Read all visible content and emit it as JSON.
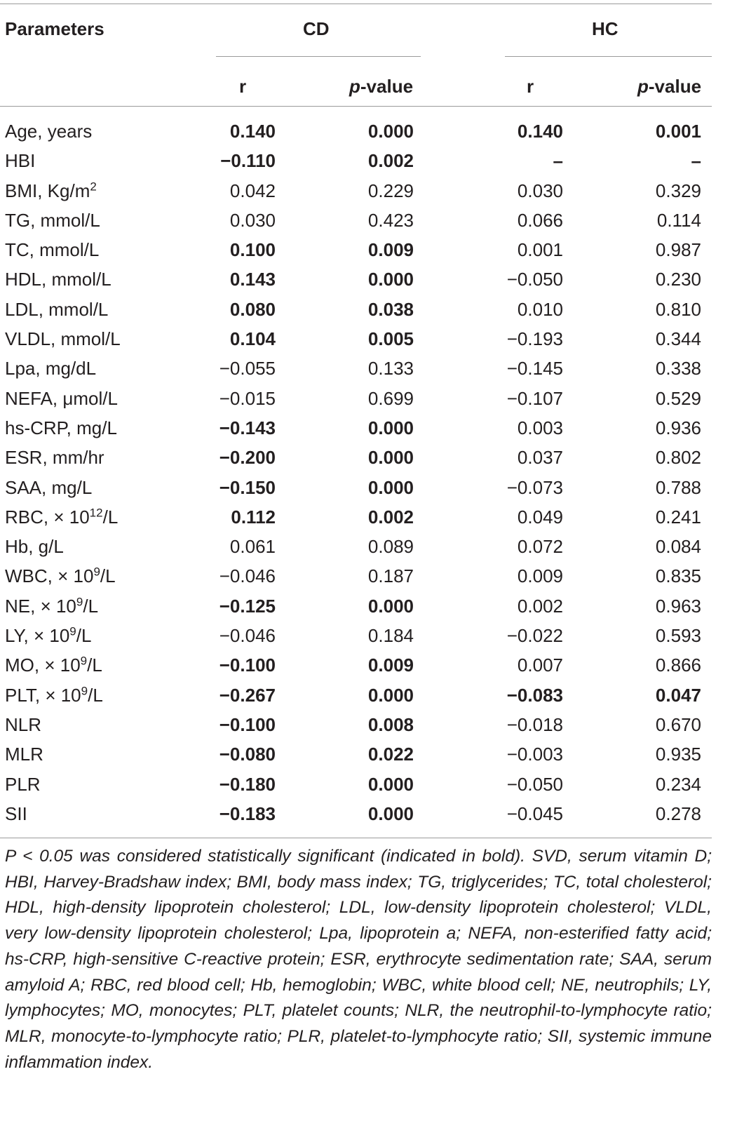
{
  "table": {
    "headers": {
      "parameters": "Parameters",
      "group_cd": "CD",
      "group_hc": "HC",
      "r": "r",
      "p_prefix": "p",
      "p_suffix": "-value"
    },
    "rows": [
      {
        "param": "Age, years",
        "sup": "",
        "param_tail": "",
        "cd_r": "0.140",
        "cd_p": "0.000",
        "hc_r": "0.140",
        "hc_p": "0.001",
        "cd_bold": true,
        "hc_bold": true
      },
      {
        "param": "HBI",
        "sup": "",
        "param_tail": "",
        "cd_r": "−0.110",
        "cd_p": "0.002",
        "hc_r": "–",
        "hc_p": "–",
        "cd_bold": true,
        "hc_bold": true
      },
      {
        "param": "BMI, Kg/m",
        "sup": "2",
        "param_tail": "",
        "cd_r": "0.042",
        "cd_p": "0.229",
        "hc_r": "0.030",
        "hc_p": "0.329",
        "cd_bold": false,
        "hc_bold": false
      },
      {
        "param": "TG, mmol/L",
        "sup": "",
        "param_tail": "",
        "cd_r": "0.030",
        "cd_p": "0.423",
        "hc_r": "0.066",
        "hc_p": "0.114",
        "cd_bold": false,
        "hc_bold": false
      },
      {
        "param": "TC, mmol/L",
        "sup": "",
        "param_tail": "",
        "cd_r": "0.100",
        "cd_p": "0.009",
        "hc_r": "0.001",
        "hc_p": "0.987",
        "cd_bold": true,
        "hc_bold": false
      },
      {
        "param": "HDL, mmol/L",
        "sup": "",
        "param_tail": "",
        "cd_r": "0.143",
        "cd_p": "0.000",
        "hc_r": "−0.050",
        "hc_p": "0.230",
        "cd_bold": true,
        "hc_bold": false
      },
      {
        "param": "LDL, mmol/L",
        "sup": "",
        "param_tail": "",
        "cd_r": "0.080",
        "cd_p": "0.038",
        "hc_r": "0.010",
        "hc_p": "0.810",
        "cd_bold": true,
        "hc_bold": false
      },
      {
        "param": "VLDL, mmol/L",
        "sup": "",
        "param_tail": "",
        "cd_r": "0.104",
        "cd_p": "0.005",
        "hc_r": "−0.193",
        "hc_p": "0.344",
        "cd_bold": true,
        "hc_bold": false
      },
      {
        "param": "Lpa, mg/dL",
        "sup": "",
        "param_tail": "",
        "cd_r": "−0.055",
        "cd_p": "0.133",
        "hc_r": "−0.145",
        "hc_p": "0.338",
        "cd_bold": false,
        "hc_bold": false
      },
      {
        "param": "NEFA, μmol/L",
        "sup": "",
        "param_tail": "",
        "cd_r": "−0.015",
        "cd_p": "0.699",
        "hc_r": "−0.107",
        "hc_p": "0.529",
        "cd_bold": false,
        "hc_bold": false
      },
      {
        "param": "hs-CRP, mg/L",
        "sup": "",
        "param_tail": "",
        "cd_r": "−0.143",
        "cd_p": "0.000",
        "hc_r": "0.003",
        "hc_p": "0.936",
        "cd_bold": true,
        "hc_bold": false
      },
      {
        "param": "ESR, mm/hr",
        "sup": "",
        "param_tail": "",
        "cd_r": "−0.200",
        "cd_p": "0.000",
        "hc_r": "0.037",
        "hc_p": "0.802",
        "cd_bold": true,
        "hc_bold": false
      },
      {
        "param": "SAA, mg/L",
        "sup": "",
        "param_tail": "",
        "cd_r": "−0.150",
        "cd_p": "0.000",
        "hc_r": "−0.073",
        "hc_p": "0.788",
        "cd_bold": true,
        "hc_bold": false
      },
      {
        "param": "RBC, × 10",
        "sup": "12",
        "param_tail": "/L",
        "cd_r": "0.112",
        "cd_p": "0.002",
        "hc_r": "0.049",
        "hc_p": "0.241",
        "cd_bold": true,
        "hc_bold": false
      },
      {
        "param": "Hb, g/L",
        "sup": "",
        "param_tail": "",
        "cd_r": "0.061",
        "cd_p": "0.089",
        "hc_r": "0.072",
        "hc_p": "0.084",
        "cd_bold": false,
        "hc_bold": false
      },
      {
        "param": "WBC, × 10",
        "sup": "9",
        "param_tail": "/L",
        "cd_r": "−0.046",
        "cd_p": "0.187",
        "hc_r": "0.009",
        "hc_p": "0.835",
        "cd_bold": false,
        "hc_bold": false
      },
      {
        "param": "NE, × 10",
        "sup": "9",
        "param_tail": "/L",
        "cd_r": "−0.125",
        "cd_p": "0.000",
        "hc_r": "0.002",
        "hc_p": "0.963",
        "cd_bold": true,
        "hc_bold": false
      },
      {
        "param": "LY, × 10",
        "sup": "9",
        "param_tail": "/L",
        "cd_r": "−0.046",
        "cd_p": "0.184",
        "hc_r": "−0.022",
        "hc_p": "0.593",
        "cd_bold": false,
        "hc_bold": false
      },
      {
        "param": "MO, × 10",
        "sup": "9",
        "param_tail": "/L",
        "cd_r": "−0.100",
        "cd_p": "0.009",
        "hc_r": "0.007",
        "hc_p": "0.866",
        "cd_bold": true,
        "hc_bold": false
      },
      {
        "param": "PLT, × 10",
        "sup": "9",
        "param_tail": "/L",
        "cd_r": "−0.267",
        "cd_p": "0.000",
        "hc_r": "−0.083",
        "hc_p": "0.047",
        "cd_bold": true,
        "hc_bold": true
      },
      {
        "param": "NLR",
        "sup": "",
        "param_tail": "",
        "cd_r": "−0.100",
        "cd_p": "0.008",
        "hc_r": "−0.018",
        "hc_p": "0.670",
        "cd_bold": true,
        "hc_bold": false
      },
      {
        "param": "MLR",
        "sup": "",
        "param_tail": "",
        "cd_r": "−0.080",
        "cd_p": "0.022",
        "hc_r": "−0.003",
        "hc_p": "0.935",
        "cd_bold": true,
        "hc_bold": false
      },
      {
        "param": "PLR",
        "sup": "",
        "param_tail": "",
        "cd_r": "−0.180",
        "cd_p": "0.000",
        "hc_r": "−0.050",
        "hc_p": "0.234",
        "cd_bold": true,
        "hc_bold": false
      },
      {
        "param": "SII",
        "sup": "",
        "param_tail": "",
        "cd_r": "−0.183",
        "cd_p": "0.000",
        "hc_r": "−0.045",
        "hc_p": "0.278",
        "cd_bold": true,
        "hc_bold": false
      }
    ],
    "footnote": "P < 0.05 was considered statistically significant (indicated in bold). SVD, serum vitamin D; HBI, Harvey-Bradshaw index; BMI, body mass index; TG, triglycerides; TC, total cholesterol; HDL, high-density lipoprotein cholesterol; LDL, low-density lipoprotein cholesterol; VLDL, very low-density lipoprotein cholesterol; Lpa, lipoprotein a; NEFA, non-esterified fatty acid; hs-CRP, high-sensitive C-reactive protein; ESR, erythrocyte sedimentation rate; SAA, serum amyloid A; RBC, red blood cell; Hb, hemoglobin; WBC, white blood cell; NE, neutrophils; LY, lymphocytes; MO, monocytes; PLT, platelet counts; NLR, the neutrophil-to-lymphocyte ratio; MLR, monocyte-to-lymphocyte ratio; PLR, platelet-to-lymphocyte ratio; SII, systemic immune inflammation index."
  }
}
